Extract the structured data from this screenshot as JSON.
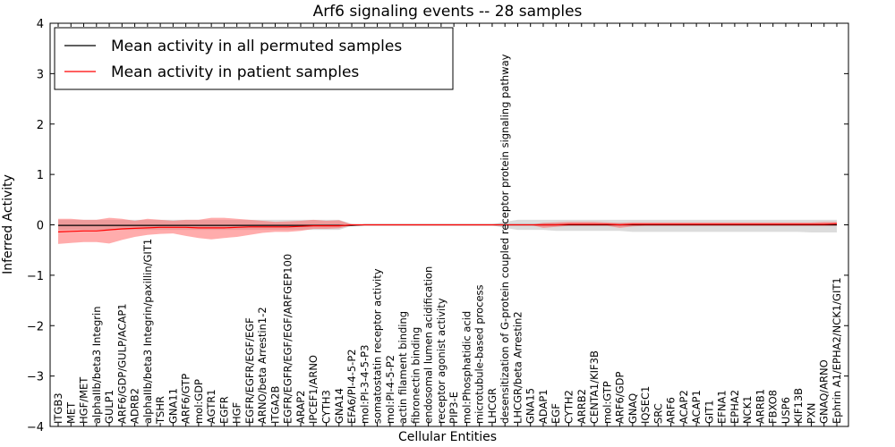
{
  "chart_data": {
    "type": "line",
    "title": "Arf6 signaling events -- 28 samples",
    "xlabel": "Cellular Entities",
    "ylabel": "Inferred Activity",
    "ylim": [
      -4,
      4
    ],
    "yticks": [
      -4,
      -3,
      -2,
      -1,
      0,
      1,
      2,
      3,
      4
    ],
    "grid": false,
    "legend": {
      "placement": "top-left",
      "entries": [
        {
          "label": "Mean activity in all permuted samples",
          "color": "#000000"
        },
        {
          "label": "Mean activity in patient samples",
          "color": "#ff0000"
        }
      ]
    },
    "categories": [
      "ITGB3",
      "MET",
      "HGF/MET",
      "alphaIIb/beta3 Integrin",
      "GULP1",
      "ARF6/GDP/GULP/ACAP1",
      "ADRB2",
      "alphaIIb/beta3 Integrin/paxillin/GIT1",
      "TSHR",
      "GNA11",
      "ARF6/GTP",
      "mol:GDP",
      "AGTR1",
      "EGFR",
      "HGF",
      "EGFR/EGFR/EGF/EGF",
      "ARNO/beta Arrestin1-2",
      "ITGA2B",
      "EGFR/EGFR/EGF/EGF/ARFGEP100",
      "ARAP2",
      "IPCEF1/ARNO",
      "CYTH3",
      "GNA14",
      "EFA6/PI-4-5-P2",
      "mol:PI-3-4-5-P3",
      "somatostatin receptor activity",
      "mol:PI-4-5-P2",
      "actin filament binding",
      "fibronectin binding",
      "endosomal lumen acidification",
      "receptor agonist activity",
      "PIP3-E",
      "mol:Phosphatidic acid",
      "microtubule-based process",
      "LHCGR",
      "desensitization of G-protein coupled receptor protein signaling pathway",
      "LHCGR/beta Arrestin2",
      "GNA15",
      "ADAP1",
      "EGF",
      "CYTH2",
      "ARRB2",
      "CENTA1/KIF3B",
      "mol:GTP",
      "ARF6/GDP",
      "GNAQ",
      "IQSEC1",
      "SRC",
      "ARF6",
      "ACAP2",
      "ACAP1",
      "GIT1",
      "EFNA1",
      "EPHA2",
      "NCK1",
      "ARRB1",
      "FBXO8",
      "USP6",
      "KIF13B",
      "PXN",
      "GNAQ/ARNO",
      "Ephrin A1/EPHA2/NCK1/GIT1"
    ],
    "series": [
      {
        "name": "Mean activity in all permuted samples",
        "color": "#000000",
        "band_color": "#808080",
        "values": [
          -0.01,
          -0.01,
          -0.01,
          -0.01,
          -0.01,
          -0.01,
          -0.01,
          -0.01,
          -0.01,
          -0.01,
          -0.01,
          -0.01,
          -0.01,
          -0.01,
          -0.01,
          -0.01,
          -0.01,
          -0.01,
          -0.01,
          -0.01,
          -0.01,
          -0.01,
          -0.01,
          -0.01,
          0,
          0,
          0,
          0,
          0,
          0,
          0,
          0,
          0,
          0,
          0,
          0,
          0,
          0,
          0,
          0,
          0,
          0,
          0,
          0,
          0,
          0,
          0,
          0,
          0,
          0,
          0,
          0,
          0,
          0,
          0,
          0,
          0,
          0,
          0,
          0,
          0,
          0
        ],
        "band_lower": [
          -0.1,
          -0.1,
          -0.1,
          -0.1,
          -0.1,
          -0.1,
          -0.1,
          -0.1,
          -0.1,
          -0.1,
          -0.1,
          -0.1,
          -0.1,
          -0.1,
          -0.1,
          -0.1,
          -0.1,
          -0.1,
          -0.1,
          -0.1,
          -0.1,
          -0.1,
          -0.1,
          -0.02,
          -0.01,
          -0.01,
          -0.01,
          -0.01,
          -0.01,
          -0.01,
          -0.01,
          -0.01,
          -0.01,
          -0.01,
          -0.01,
          -0.06,
          -0.1,
          -0.1,
          -0.1,
          -0.12,
          -0.12,
          -0.12,
          -0.12,
          -0.12,
          -0.12,
          -0.14,
          -0.14,
          -0.14,
          -0.14,
          -0.14,
          -0.14,
          -0.14,
          -0.14,
          -0.14,
          -0.14,
          -0.14,
          -0.14,
          -0.14,
          -0.14,
          -0.15,
          -0.15,
          -0.15
        ],
        "band_upper": [
          0.1,
          0.1,
          0.1,
          0.1,
          0.1,
          0.1,
          0.1,
          0.1,
          0.1,
          0.1,
          0.1,
          0.1,
          0.1,
          0.1,
          0.1,
          0.1,
          0.1,
          0.1,
          0.1,
          0.1,
          0.1,
          0.1,
          0.1,
          0.02,
          0.01,
          0.01,
          0.01,
          0.01,
          0.01,
          0.01,
          0.01,
          0.01,
          0.01,
          0.01,
          0.01,
          0.06,
          0.1,
          0.1,
          0.1,
          0.1,
          0.1,
          0.1,
          0.1,
          0.1,
          0.1,
          0.1,
          0.1,
          0.1,
          0.1,
          0.1,
          0.1,
          0.1,
          0.1,
          0.1,
          0.1,
          0.1,
          0.1,
          0.1,
          0.1,
          0.1,
          0.1,
          0.1
        ]
      },
      {
        "name": "Mean activity in patient samples",
        "color": "#ff0000",
        "band_color": "#ff5a5a",
        "values": [
          -0.14,
          -0.13,
          -0.12,
          -0.12,
          -0.1,
          -0.08,
          -0.07,
          -0.06,
          -0.05,
          -0.05,
          -0.05,
          -0.06,
          -0.06,
          -0.06,
          -0.05,
          -0.04,
          -0.04,
          -0.04,
          -0.04,
          -0.03,
          -0.02,
          -0.02,
          -0.02,
          0,
          0,
          0,
          0,
          0,
          0,
          0,
          0,
          0,
          0,
          0,
          0,
          0,
          0,
          0,
          0,
          0,
          0.01,
          0.01,
          0.01,
          0.01,
          0,
          0.01,
          0.01,
          0.01,
          0.01,
          0.01,
          0.01,
          0.01,
          0.01,
          0.01,
          0.01,
          0.01,
          0.01,
          0.01,
          0.01,
          0.01,
          0.01,
          0.02
        ],
        "band_lower": [
          -0.38,
          -0.36,
          -0.34,
          -0.34,
          -0.37,
          -0.3,
          -0.24,
          -0.2,
          -0.18,
          -0.17,
          -0.22,
          -0.26,
          -0.29,
          -0.26,
          -0.24,
          -0.2,
          -0.16,
          -0.14,
          -0.14,
          -0.12,
          -0.08,
          -0.08,
          -0.07,
          -0.01,
          0,
          0,
          0,
          0,
          0,
          0,
          0,
          0,
          0,
          0,
          0,
          0,
          0,
          0,
          -0.06,
          -0.04,
          -0.02,
          -0.02,
          -0.02,
          -0.02,
          -0.06,
          -0.03,
          -0.02,
          -0.02,
          -0.02,
          -0.02,
          -0.02,
          -0.02,
          -0.02,
          -0.02,
          -0.02,
          -0.02,
          -0.02,
          -0.02,
          -0.02,
          -0.02,
          -0.02,
          -0.02
        ],
        "band_upper": [
          0.12,
          0.12,
          0.1,
          0.1,
          0.14,
          0.12,
          0.08,
          0.12,
          0.1,
          0.08,
          0.1,
          0.1,
          0.14,
          0.14,
          0.12,
          0.1,
          0.08,
          0.06,
          0.07,
          0.08,
          0.1,
          0.08,
          0.09,
          0.01,
          0,
          0,
          0,
          0,
          0,
          0,
          0,
          0,
          0,
          0,
          0,
          0,
          0,
          0,
          0.04,
          0.05,
          0.06,
          0.06,
          0.06,
          0.05,
          0.04,
          0.05,
          0.05,
          0.05,
          0.05,
          0.05,
          0.05,
          0.05,
          0.05,
          0.05,
          0.05,
          0.05,
          0.05,
          0.05,
          0.05,
          0.05,
          0.06,
          0.06
        ]
      }
    ]
  }
}
